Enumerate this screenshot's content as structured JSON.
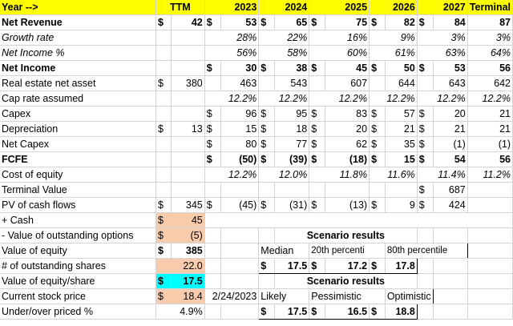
{
  "header": {
    "label": "Year -->",
    "cols": [
      "TTM",
      "2023",
      "2024",
      "2025",
      "2026",
      "2027",
      "Terminal"
    ]
  },
  "rows": {
    "net_revenue": {
      "label": "Net Revenue",
      "vals": [
        "42",
        "53",
        "65",
        "75",
        "82",
        "84",
        "87"
      ]
    },
    "growth_rate": {
      "label": "Growth rate",
      "vals": [
        "28%",
        "22%",
        "16%",
        "9%",
        "3%",
        "3%"
      ]
    },
    "net_income_pct": {
      "label": "Net Income %",
      "vals": [
        "56%",
        "58%",
        "60%",
        "61%",
        "63%",
        "64%"
      ]
    },
    "net_income": {
      "label": "Net Income",
      "vals": [
        "30",
        "38",
        "45",
        "50",
        "53",
        "56"
      ]
    },
    "real_estate": {
      "label": "Real estate net asset",
      "vals": [
        "380",
        "463",
        "543",
        "607",
        "644",
        "643",
        "642"
      ]
    },
    "cap_rate": {
      "label": "Cap rate assumed",
      "vals": [
        "12.2%",
        "12.2%",
        "12.2%",
        "12.2%",
        "12.2%",
        "12.2%"
      ]
    },
    "capex": {
      "label": "Capex",
      "vals": [
        "96",
        "95",
        "83",
        "57",
        "20",
        "21"
      ]
    },
    "depreciation": {
      "label": "Depreciation",
      "vals": [
        "13",
        "15",
        "18",
        "20",
        "21",
        "21",
        "21"
      ]
    },
    "net_capex": {
      "label": "Net Capex",
      "vals": [
        "80",
        "77",
        "62",
        "35",
        "(1)",
        "(1)"
      ]
    },
    "fcfe": {
      "label": "FCFE",
      "vals": [
        "(50)",
        "(39)",
        "(18)",
        "15",
        "54",
        "56"
      ]
    },
    "cost_of_equity": {
      "label": "Cost of equity",
      "vals": [
        "12.2%",
        "12.0%",
        "11.8%",
        "11.6%",
        "11.4%",
        "11.2%"
      ]
    },
    "terminal_value": {
      "label": "Terminal Value",
      "vals": [
        "687"
      ]
    },
    "pv_cash_flows": {
      "label": "PV of cash flows",
      "vals": [
        "345",
        "(45)",
        "(31)",
        "(13)",
        "9",
        "424"
      ]
    },
    "plus_cash": {
      "label": "+ Cash",
      "vals": [
        "45"
      ]
    },
    "options": {
      "label": "- Value of outstanding options",
      "vals": [
        "(5)"
      ]
    },
    "value_equity": {
      "label": "Value of equity",
      "vals": [
        "385"
      ]
    },
    "shares": {
      "label": "# of outstanding shares",
      "vals": [
        "22.0"
      ]
    },
    "value_share": {
      "label": "Value of equity/share",
      "vals": [
        "17.5"
      ]
    },
    "stock_price": {
      "label": "Current stock price",
      "vals": [
        "18.4"
      ],
      "date": "2/24/2023"
    },
    "under_over": {
      "label": "Under/over priced %",
      "vals": [
        "4.9%"
      ]
    }
  },
  "scenario1": {
    "title": "Scenario results",
    "labels": [
      "Median",
      "20th percenti",
      "80th percentile"
    ],
    "vals": [
      "17.5",
      "17.2",
      "17.8"
    ]
  },
  "scenario2": {
    "title": "Scenario results",
    "labels": [
      "Likely",
      "Pessimistic",
      "Optimistic"
    ],
    "vals": [
      "17.5",
      "16.5",
      "18.8"
    ]
  },
  "currency": "$"
}
